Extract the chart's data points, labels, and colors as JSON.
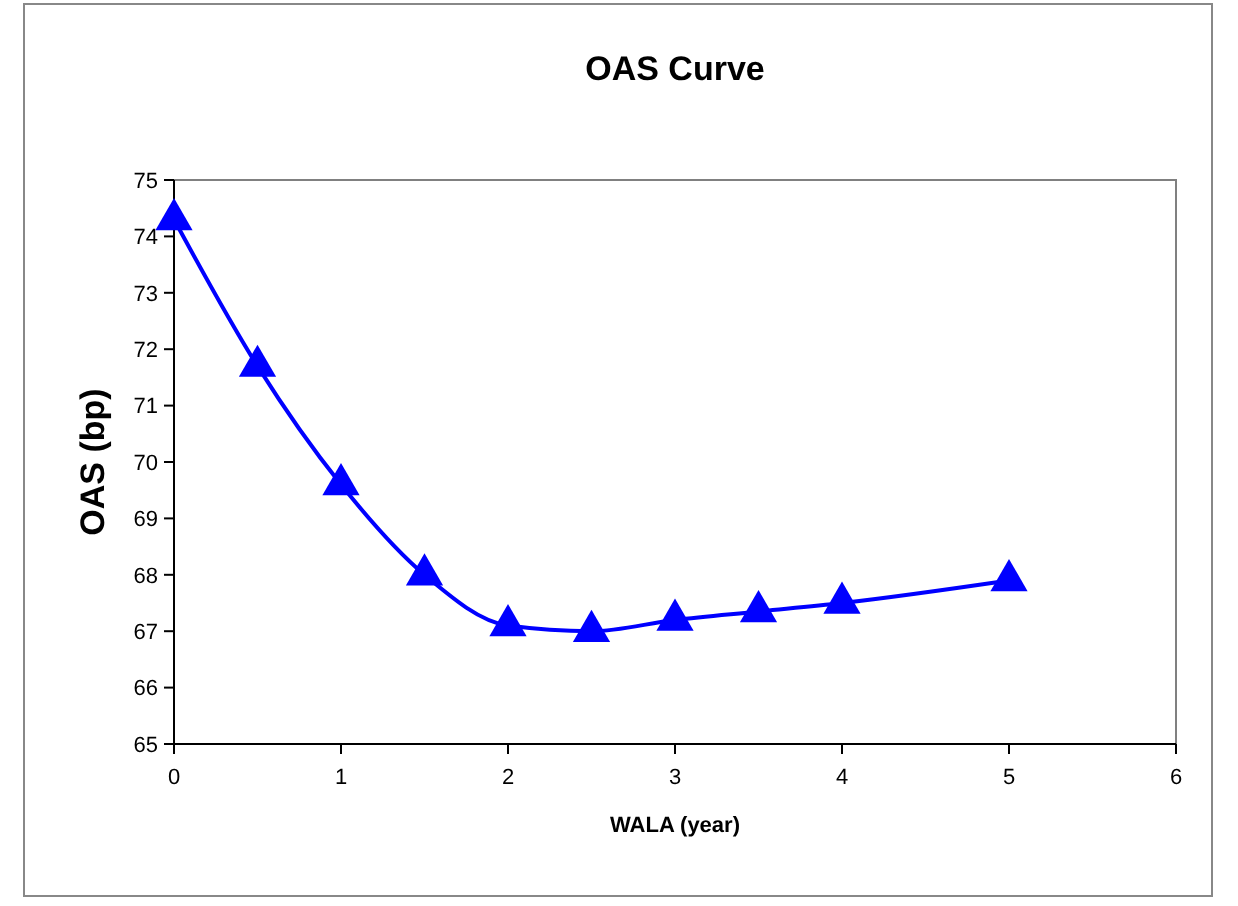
{
  "chart_data": {
    "type": "line",
    "title": "OAS Curve",
    "xlabel": "WALA (year)",
    "ylabel": "OAS (bp)",
    "x": [
      0,
      0.5,
      1,
      1.5,
      2,
      2.5,
      3,
      3.5,
      4,
      5
    ],
    "series": [
      {
        "color": "#0000ff",
        "values": [
          74.3,
          71.7,
          69.6,
          68.0,
          67.1,
          67.0,
          67.2,
          67.35,
          67.5,
          67.9
        ]
      }
    ],
    "xlim": [
      0,
      6
    ],
    "xticks": [
      0,
      1,
      2,
      3,
      4,
      5,
      6
    ],
    "ylim": [
      65,
      75
    ],
    "yticks": [
      65,
      66,
      67,
      68,
      69,
      70,
      71,
      72,
      73,
      74,
      75
    ],
    "grid": false,
    "marker": "triangle",
    "line_style": "solid"
  }
}
